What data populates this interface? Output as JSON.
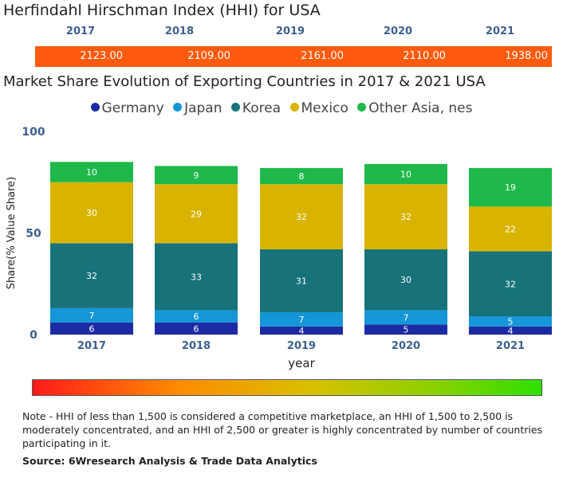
{
  "hhi": {
    "title": "Herfindahl Hirschman Index (HHI) for USA",
    "years": [
      "2017",
      "2018",
      "2019",
      "2020",
      "2021"
    ],
    "values": [
      "2123.00",
      "2109.00",
      "2161.00",
      "2110.00",
      "1938.00"
    ],
    "bar_color": "#ff5a0e"
  },
  "chart_data": {
    "type": "bar",
    "stacked": true,
    "title": "Market Share Evolution of Exporting Countries in 2017 & 2021 USA",
    "xlabel": "year",
    "ylabel": "Share(% Value Share)",
    "ylim": [
      0,
      100
    ],
    "yticks": [
      "0",
      "50",
      "100"
    ],
    "categories": [
      "2017",
      "2018",
      "2019",
      "2020",
      "2021"
    ],
    "series": [
      {
        "name": "Germany",
        "color": "#1c2aa3",
        "values": [
          6,
          6,
          4,
          5,
          4
        ]
      },
      {
        "name": "Japan",
        "color": "#1596d8",
        "values": [
          7,
          6,
          7,
          7,
          5
        ]
      },
      {
        "name": "Korea",
        "color": "#17727a",
        "values": [
          32,
          33,
          31,
          30,
          32
        ]
      },
      {
        "name": "Mexico",
        "color": "#d8b400",
        "values": [
          30,
          29,
          32,
          32,
          22
        ]
      },
      {
        "name": "Other Asia, nes",
        "color": "#1fb84a",
        "values": [
          10,
          9,
          8,
          10,
          19
        ]
      }
    ],
    "legend_position": "top"
  },
  "footer": {
    "note": "Note - HHI of less than 1,500 is considered a competitive marketplace, an HHI of 1,500 to 2,500 is moderately concentrated, and an HHI of 2,500 or greater is highly concentrated by number of countries participating in it.",
    "source": "Source: 6Wresearch Analysis & Trade Data Analytics"
  }
}
